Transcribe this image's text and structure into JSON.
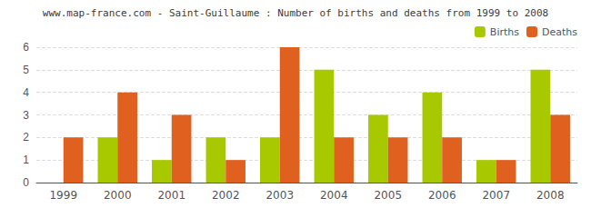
{
  "chart_data": {
    "type": "bar",
    "title": "www.map-france.com - Saint-Guillaume : Number of births and deaths from 1999 to 2008",
    "categories": [
      "1999",
      "2000",
      "2001",
      "2002",
      "2003",
      "2004",
      "2005",
      "2006",
      "2007",
      "2008"
    ],
    "series": [
      {
        "name": "Births",
        "color": "#a8c800",
        "values": [
          0,
          2,
          1,
          2,
          2,
          5,
          3,
          4,
          1,
          5
        ]
      },
      {
        "name": "Deaths",
        "color": "#e06020",
        "values": [
          2,
          4,
          3,
          1,
          6,
          2,
          2,
          2,
          1,
          3
        ]
      }
    ],
    "ylim": [
      0,
      6
    ],
    "yticks": [
      0,
      1,
      2,
      3,
      4,
      5,
      6
    ],
    "grid": true,
    "legend": "upper right"
  }
}
